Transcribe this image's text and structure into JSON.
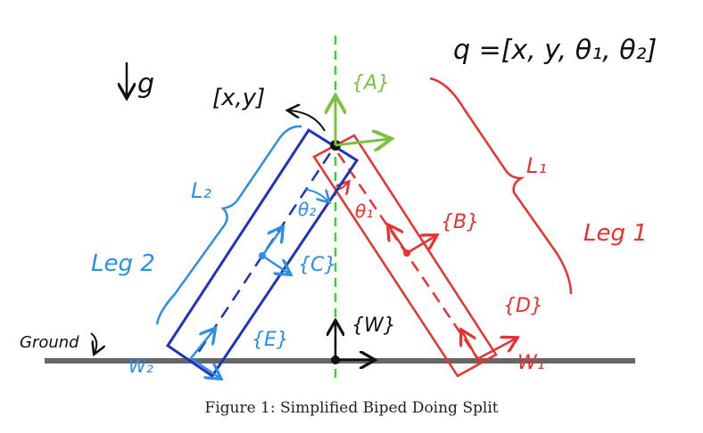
{
  "diagram": {
    "gravity_label": "g",
    "q_label": "q =[x, y, θ₁, θ₂]",
    "base_point_label": "[x,y]",
    "frames": {
      "A": "{A}",
      "B": "{B}",
      "C": "{C}",
      "D": "{D}",
      "E": "{E}",
      "W": "{W}"
    },
    "angles": {
      "theta1": "θ₁",
      "theta2": "θ₂"
    },
    "lengths": {
      "L1": "L₁",
      "L2": "L₂"
    },
    "legs": {
      "leg1": "Leg 1",
      "leg2": "Leg 2"
    },
    "ground": "Ground",
    "wrenches": {
      "W1": "W₁",
      "W2": "W₂"
    },
    "colors": {
      "leg1": "#e8322f",
      "leg2_outline": "#2233bb",
      "leg2_annot": "#2d8ee6",
      "frame_A": "#7cc242",
      "vertical_dash": "#3ecf3e",
      "ground": "#666666",
      "ink": "#111111"
    }
  },
  "caption": "Figure 1: Simplified Biped Doing Split"
}
